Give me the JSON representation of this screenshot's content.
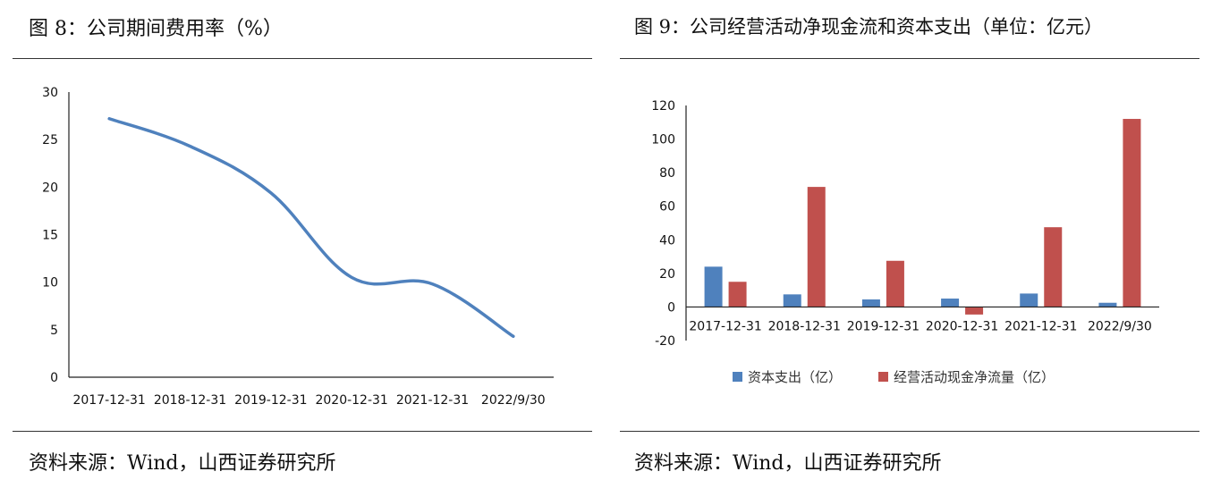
{
  "panels": {
    "left": {
      "title": "图 8：公司期间费用率（%）",
      "source": "资料来源：Wind，山西证券研究所"
    },
    "right": {
      "title": "图 9：公司经营活动净现金流和资本支出（单位：亿元）",
      "source": "资料来源：Wind，山西证券研究所"
    }
  },
  "chart_data": [
    {
      "type": "line",
      "title": "图 8：公司期间费用率（%）",
      "categories": [
        "2017-12-31",
        "2018-12-31",
        "2019-12-31",
        "2020-12-31",
        "2021-12-31",
        "2022/9/30"
      ],
      "series": [
        {
          "values": [
            27.2,
            24.3,
            19.4,
            10.5,
            9.8,
            4.3
          ],
          "color": "#4f81bd"
        }
      ],
      "ylim": [
        0,
        30
      ],
      "yticks": [
        0,
        5,
        10,
        15,
        20,
        25,
        30
      ],
      "grid": false,
      "smooth": true
    },
    {
      "type": "bar",
      "title": "图 9：公司经营活动净现金流和资本支出（单位：亿元）",
      "categories": [
        "2017-12-31",
        "2018-12-31",
        "2019-12-31",
        "2020-12-31",
        "2021-12-31",
        "2022/9/30"
      ],
      "series": [
        {
          "name": "资本支出（亿）",
          "values": [
            24,
            7.5,
            4.5,
            5,
            8,
            2.5
          ],
          "color": "#4f81bd"
        },
        {
          "name": "经营活动现金净流量（亿）",
          "values": [
            15,
            71.5,
            27.5,
            -4.5,
            47.5,
            112
          ],
          "color": "#c0504d"
        }
      ],
      "ylim": [
        -20,
        120
      ],
      "yticks": [
        -20,
        0,
        20,
        40,
        60,
        80,
        100,
        120
      ],
      "grid": false,
      "legend": "bottom"
    }
  ]
}
